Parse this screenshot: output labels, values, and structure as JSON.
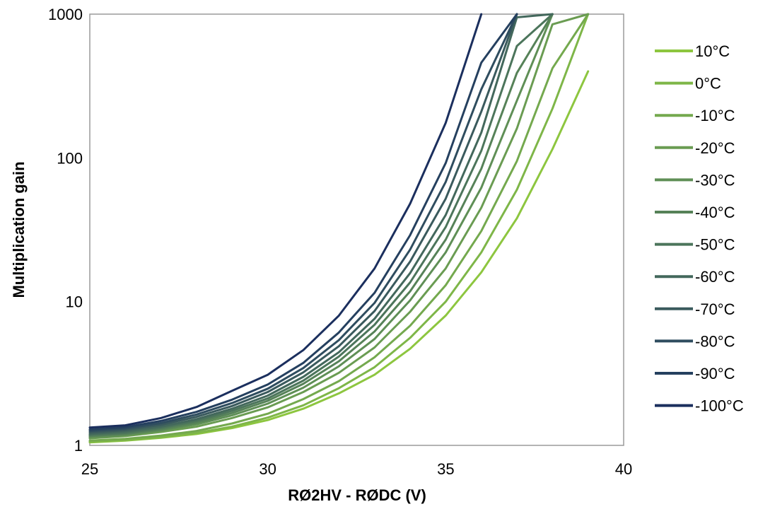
{
  "chart_data": {
    "type": "line",
    "title": "",
    "xlabel": "RØ2HV - RØDC (V)",
    "ylabel": "Multiplication gain",
    "xlim": [
      25,
      40
    ],
    "ylim": [
      1,
      1000
    ],
    "yscale": "log",
    "grid": false,
    "legend_position": "right",
    "x_ticks": [
      "25",
      "30",
      "35",
      "40"
    ],
    "y_ticks": [
      "1",
      "10",
      "100",
      "1000"
    ],
    "x": [
      25,
      26,
      27,
      28,
      29,
      30,
      31,
      32,
      33,
      34,
      35,
      36,
      37,
      38,
      39
    ],
    "series": [
      {
        "name": "10°C",
        "color": "#8dc63f",
        "values": [
          1.05,
          1.08,
          1.13,
          1.2,
          1.32,
          1.5,
          1.8,
          2.3,
          3.1,
          4.7,
          8.0,
          16.0,
          38.0,
          115,
          400
        ]
      },
      {
        "name": "0°C",
        "color": "#7eb648",
        "values": [
          1.06,
          1.09,
          1.14,
          1.22,
          1.35,
          1.56,
          1.9,
          2.5,
          3.5,
          5.6,
          10.0,
          22.0,
          60.0,
          220,
          1000
        ]
      },
      {
        "name": "-10°C",
        "color": "#74a94e",
        "values": [
          1.08,
          1.11,
          1.17,
          1.26,
          1.42,
          1.66,
          2.1,
          2.8,
          4.1,
          6.8,
          13.0,
          31.0,
          95.0,
          420,
          1000
        ]
      },
      {
        "name": "-20°C",
        "color": "#6a9c52",
        "values": [
          1.12,
          1.16,
          1.24,
          1.35,
          1.55,
          1.84,
          2.35,
          3.2,
          4.8,
          8.5,
          17.0,
          45.0,
          160,
          850,
          1000
        ]
      },
      {
        "name": "-30°C",
        "color": "#5f8f56",
        "values": [
          1.14,
          1.18,
          1.27,
          1.4,
          1.62,
          1.95,
          2.52,
          3.55,
          5.5,
          10.2,
          22.0,
          62.0,
          250,
          1000,
          1000
        ]
      },
      {
        "name": "-40°C",
        "color": "#568258",
        "values": [
          1.16,
          1.2,
          1.29,
          1.44,
          1.68,
          2.04,
          2.68,
          3.85,
          6.2,
          11.8,
          27.0,
          84.0,
          390,
          1000,
          1000
        ]
      },
      {
        "name": "-50°C",
        "color": "#4c755b",
        "values": [
          1.18,
          1.22,
          1.32,
          1.48,
          1.74,
          2.12,
          2.82,
          4.15,
          6.9,
          13.6,
          33.0,
          112,
          600,
          1000,
          1000
        ]
      },
      {
        "name": "-60°C",
        "color": "#43685c",
        "values": [
          1.2,
          1.25,
          1.35,
          1.52,
          1.8,
          2.22,
          3.0,
          4.45,
          7.6,
          15.8,
          40.0,
          150,
          950,
          1000,
          1000
        ]
      },
      {
        "name": "-70°C",
        "color": "#3a5a5d",
        "values": [
          1.23,
          1.28,
          1.39,
          1.58,
          1.88,
          2.35,
          3.22,
          4.9,
          8.6,
          19.0,
          52.0,
          210,
          1000,
          1000,
          1000
        ]
      },
      {
        "name": "-80°C",
        "color": "#2f4d5f",
        "values": [
          1.26,
          1.31,
          1.43,
          1.64,
          1.97,
          2.48,
          3.45,
          5.4,
          9.8,
          23.0,
          68.0,
          300,
          1000,
          1000,
          1000
        ]
      },
      {
        "name": "-90°C",
        "color": "#25405f",
        "values": [
          1.29,
          1.34,
          1.48,
          1.71,
          2.08,
          2.65,
          3.75,
          6.1,
          11.5,
          29.0,
          92.0,
          460,
          1000,
          1000,
          1000
        ]
      },
      {
        "name": "-100°C",
        "color": "#1b2f5e",
        "values": [
          1.33,
          1.38,
          1.55,
          1.85,
          2.4,
          3.1,
          4.6,
          8.0,
          17.0,
          48.0,
          175,
          1000,
          1000,
          1000,
          1000
        ]
      }
    ]
  }
}
